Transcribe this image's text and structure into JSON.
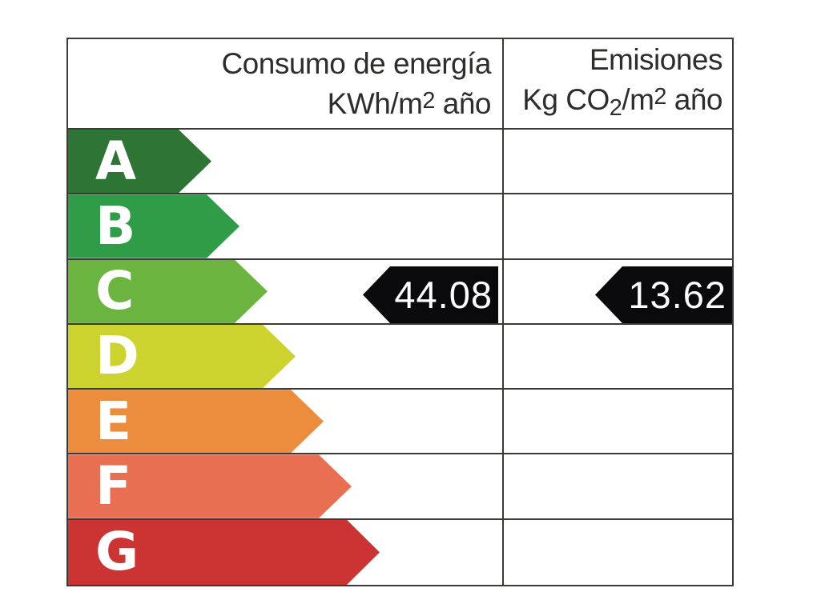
{
  "header": {
    "consumo": {
      "line1": "Consumo de energía",
      "line2_base": "KWh/m",
      "line2_sup": "2",
      "line2_rest": " año"
    },
    "emisiones": {
      "line1": "Emisiones",
      "line2_p1": "Kg CO",
      "line2_sub": "2",
      "line2_p2": "/m",
      "line2_sup": "2",
      "line2_p3": " año"
    }
  },
  "values": {
    "consumo": "44.08",
    "emisiones": "13.62"
  },
  "current_rating": "C",
  "ratings": [
    {
      "letter": "A",
      "color": "#2d7435"
    },
    {
      "letter": "B",
      "color": "#2f9c48"
    },
    {
      "letter": "C",
      "color": "#6cb440"
    },
    {
      "letter": "D",
      "color": "#ccd32e"
    },
    {
      "letter": "E",
      "color": "#ec8d3d"
    },
    {
      "letter": "F",
      "color": "#e96f53"
    },
    {
      "letter": "G",
      "color": "#cc3434"
    }
  ],
  "border_color": "#3a3a37",
  "value_arrow_color": "#0a0a0d",
  "chart_data": {
    "type": "energy-rating-label",
    "scale": [
      "A",
      "B",
      "C",
      "D",
      "E",
      "F",
      "G"
    ],
    "scale_colors": [
      "#2d7435",
      "#2f9c48",
      "#6cb440",
      "#ccd32e",
      "#ec8d3d",
      "#e96f53",
      "#cc3434"
    ],
    "columns": [
      {
        "label": "Consumo de energía KWh/m2 año",
        "value": 44.08
      },
      {
        "label": "Emisiones Kg CO2/m2 año",
        "value": 13.62
      }
    ],
    "current_rating": "C",
    "legend_position": "none",
    "grid": true
  }
}
